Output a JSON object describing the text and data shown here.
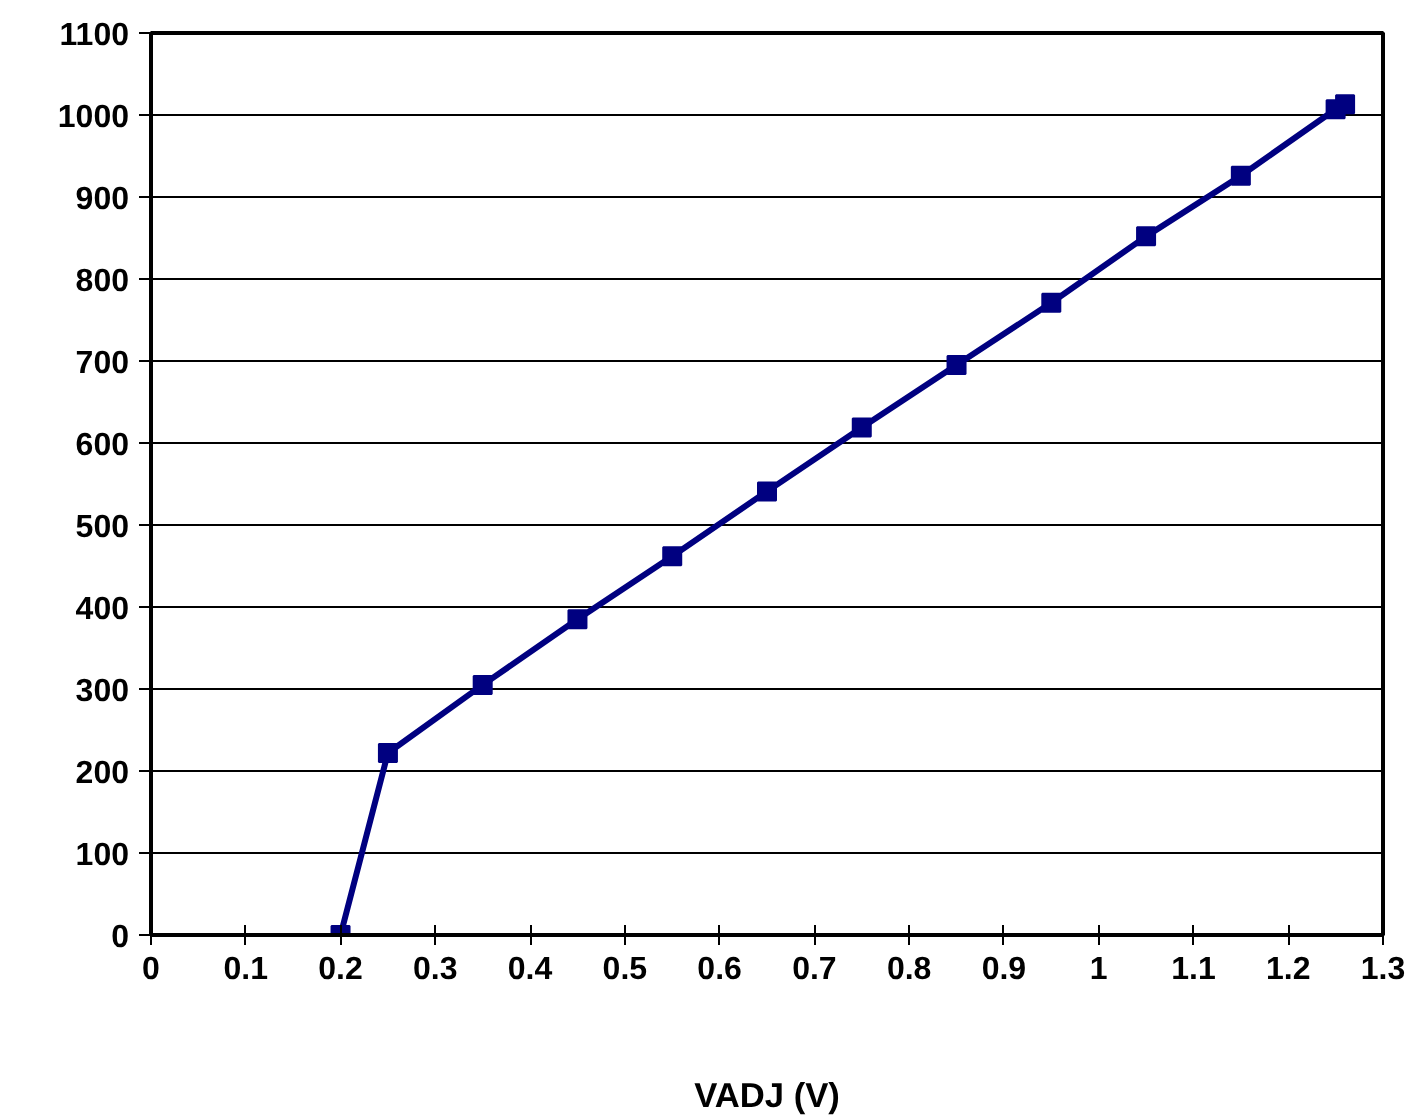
{
  "chart_data": {
    "type": "line",
    "xlabel": "VADJ (V)",
    "x": [
      0.2,
      0.25,
      0.35,
      0.45,
      0.55,
      0.65,
      0.75,
      0.85,
      0.95,
      1.05,
      1.15,
      1.25,
      1.26
    ],
    "series": [
      {
        "color": "#000080",
        "values": [
          0,
          222,
          305,
          385,
          462,
          541,
          619,
          695,
          771,
          852,
          926,
          1007,
          1013
        ]
      }
    ],
    "xlim": [
      0,
      1.3
    ],
    "xticks": [
      0,
      0.1,
      0.2,
      0.3,
      0.4,
      0.5,
      0.6,
      0.7,
      0.8,
      0.9,
      1,
      1.1,
      1.2,
      1.3
    ],
    "ylim": [
      0,
      1100
    ],
    "yticks": [
      0,
      100,
      200,
      300,
      400,
      500,
      600,
      700,
      800,
      900,
      1000,
      1100
    ],
    "grid": "y",
    "marker": "square",
    "line_style": "solid"
  }
}
